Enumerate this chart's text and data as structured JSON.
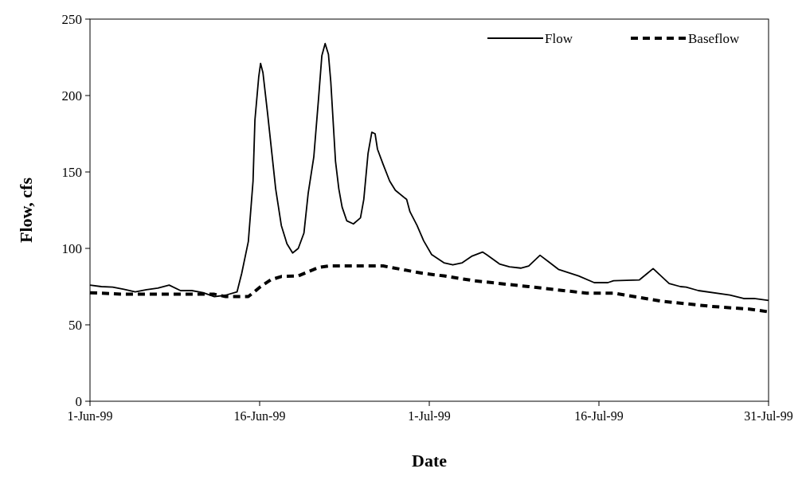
{
  "chart_data": {
    "type": "line",
    "xlabel": "Date",
    "ylabel": "Flow, cfs",
    "xlim": [
      "1999-06-01",
      "1999-07-31"
    ],
    "xticks": [
      {
        "value": "1999-06-01",
        "label": "1-Jun-99"
      },
      {
        "value": "1999-06-16",
        "label": "16-Jun-99"
      },
      {
        "value": "1999-07-01",
        "label": "1-Jul-99"
      },
      {
        "value": "1999-07-16",
        "label": "16-Jul-99"
      },
      {
        "value": "1999-07-31",
        "label": "31-Jul-99"
      }
    ],
    "ylim": [
      0,
      250
    ],
    "yticks": [
      0,
      50,
      100,
      150,
      200,
      250
    ],
    "grid": false,
    "legend": "top right",
    "marker": "none",
    "series": [
      {
        "name": "Flow",
        "color": "#000000",
        "line_style": "solid",
        "x": [
          "1999-06-01",
          "1999-06-02",
          "1999-06-03",
          "1999-06-04",
          "1999-06-05",
          "1999-06-06",
          "1999-06-07",
          "1999-06-08",
          "1999-06-09",
          "1999-06-10",
          "1999-06-11",
          "1999-06-12",
          "1999-06-13",
          "1999-06-14",
          "1999-06-14T10:00",
          "1999-06-15",
          "1999-06-15T10:00",
          "1999-06-15T14:00",
          "1999-06-15T22:00",
          "1999-06-16T02:00",
          "1999-06-16T07:00",
          "1999-06-16T17:00",
          "1999-06-17T02:00",
          "1999-06-17T10:00",
          "1999-06-17T22:00",
          "1999-06-18T10:00",
          "1999-06-18T22:00",
          "1999-06-19T10:00",
          "1999-06-19T22:00",
          "1999-06-20T07:00",
          "1999-06-20T19:00",
          "1999-06-21T05:00",
          "1999-06-21T12:00",
          "1999-06-21T19:00",
          "1999-06-22T02:00",
          "1999-06-22T07:00",
          "1999-06-22T17:00",
          "1999-06-23",
          "1999-06-23T07:00",
          "1999-06-23T17:00",
          "1999-06-24T07:00",
          "1999-06-24T22:00",
          "1999-06-25T05:00",
          "1999-06-25T14:00",
          "1999-06-25T22:00",
          "1999-06-26T05:00",
          "1999-06-26T10:00",
          "1999-06-26T22:00",
          "1999-06-27T12:00",
          "1999-06-28",
          "1999-06-29",
          "1999-06-29T07:00",
          "1999-06-29T22:00",
          "1999-06-30T12:00",
          "1999-07-01T05:00",
          "1999-07-02T07:00",
          "1999-07-03T02:00",
          "1999-07-03T22:00",
          "1999-07-04T19:00",
          "1999-07-05T17:00",
          "1999-07-06T02:00",
          "1999-07-07T05:00",
          "1999-07-08T02:00",
          "1999-07-09T02:00",
          "1999-07-09T19:00",
          "1999-07-10T19:00",
          "1999-07-11T12:00",
          "1999-07-12T10:00",
          "1999-07-14T05:00",
          "1999-07-15T14:00",
          "1999-07-16T19:00",
          "1999-07-17T07:00",
          "1999-07-19T14:00",
          "1999-07-20T07:00",
          "1999-07-20T19:00",
          "1999-07-22T05:00",
          "1999-07-23T05:00",
          "1999-07-23T17:00",
          "1999-07-24T19:00",
          "1999-07-27T14:00",
          "1999-07-28T19:00",
          "1999-07-29T17:00",
          "1999-07-31"
        ],
        "values": [
          76,
          75,
          74.7,
          73.3,
          71.5,
          73,
          74,
          76,
          72.4,
          72.4,
          71,
          68.4,
          69.4,
          71.5,
          83.7,
          104.5,
          144,
          184,
          212,
          221,
          215,
          188,
          162,
          139,
          115,
          103,
          97,
          100,
          110,
          136,
          160,
          198,
          226,
          234,
          227,
          209,
          157,
          139,
          127,
          118,
          116,
          120,
          132,
          162,
          176,
          175,
          165,
          155,
          144,
          138,
          132,
          124,
          115,
          105,
          96,
          90.6,
          89.2,
          90.6,
          95,
          97.6,
          95.8,
          89.8,
          88,
          87.1,
          88.5,
          95.5,
          91.5,
          86.3,
          82,
          77.6,
          77.6,
          78.8,
          79.4,
          83.7,
          86.8,
          77,
          75,
          74.7,
          72.4,
          69.5,
          67.2,
          67.2,
          66
        ]
      },
      {
        "name": "Baseflow",
        "color": "#000000",
        "line_style": "dashed",
        "x": [
          "1999-06-01",
          "1999-06-04",
          "1999-06-12",
          "1999-06-13",
          "1999-06-15",
          "1999-06-15T09:00",
          "1999-06-16T02:00",
          "1999-06-17",
          "1999-06-17T22:00",
          "1999-06-19T10:00",
          "1999-06-20T05:00",
          "1999-06-21T05:00",
          "1999-06-22T02:00",
          "1999-06-26T22:00",
          "1999-06-30T10:00",
          "1999-07-02T07:00",
          "1999-07-05",
          "1999-07-09T19:00",
          "1999-07-14T22:00",
          "1999-07-17T07:00",
          "1999-07-21T12:00",
          "1999-07-26",
          "1999-07-29T07:00",
          "1999-07-31"
        ],
        "values": [
          71,
          70,
          70,
          68.5,
          68.5,
          70.7,
          75,
          79.5,
          81.6,
          82,
          84.5,
          87.5,
          88.5,
          88.5,
          83.7,
          82,
          78.8,
          75,
          70.7,
          70.7,
          65.5,
          62,
          60.3,
          58.5
        ]
      }
    ]
  }
}
